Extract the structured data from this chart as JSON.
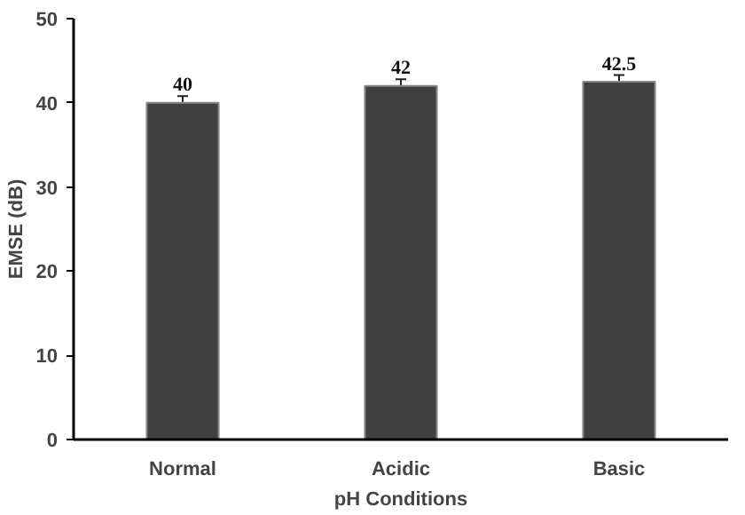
{
  "chart_data": {
    "type": "bar",
    "xlabel": "pH Conditions",
    "ylabel": "EMSE (dB)",
    "categories": [
      "Normal",
      "Acidic",
      "Basic"
    ],
    "values": [
      40,
      42,
      42.5
    ],
    "errors": [
      0.8,
      0.8,
      0.8
    ],
    "color": "#404040",
    "data_labels": true,
    "ylim": [
      0,
      50
    ],
    "yticks": [
      0,
      10,
      20,
      30,
      40,
      50
    ],
    "grid": false
  }
}
